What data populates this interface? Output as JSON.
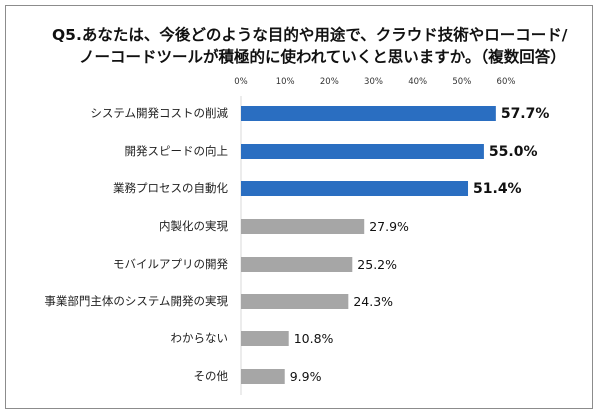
{
  "chart_data": {
    "type": "bar",
    "orientation": "horizontal",
    "title_lines": [
      "Q5.あなたは、今後どのような目的や用途で、クラウド技術やローコード/",
      "ノーコードツールが積極的に使われていくと思いますか。（複数回答）"
    ],
    "categories": [
      "システム開発コストの削減",
      "開発スピードの向上",
      "業務プロセスの自動化",
      "内製化の実現",
      "モバイルアプリの開発",
      "事業部門主体のシステム開発の実現",
      "わからない",
      "その他"
    ],
    "values": [
      57.7,
      55.0,
      51.4,
      27.9,
      25.2,
      24.3,
      10.8,
      9.9
    ],
    "value_labels": [
      "57.7%",
      "55.0%",
      "51.4%",
      "27.9%",
      "25.2%",
      "24.3%",
      "10.8%",
      "9.9%"
    ],
    "highlighted": [
      true,
      true,
      true,
      false,
      false,
      false,
      false,
      false
    ],
    "xlim": [
      0,
      60
    ],
    "tick_values": [
      0,
      10,
      20,
      30,
      40,
      50,
      60
    ],
    "tick_labels": [
      "0%",
      "10%",
      "20%",
      "30%",
      "40%",
      "50%",
      "60%"
    ],
    "xlabel": "",
    "ylabel": "",
    "grid": false,
    "colors": {
      "highlight": "#2A6EC1",
      "normal": "#A6A6A6"
    }
  }
}
